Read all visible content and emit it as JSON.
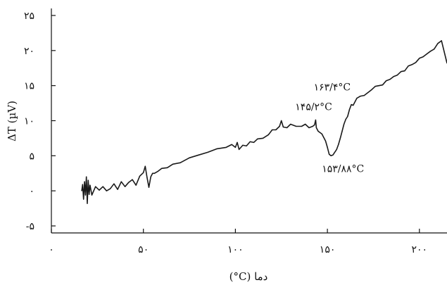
{
  "chart_data": {
    "type": "line",
    "xlabel": "(°C) دما",
    "ylabel": "ΔT (µV)",
    "xlim": [
      0,
      215
    ],
    "ylim": [
      -6,
      26
    ],
    "grid": false,
    "x_ticks": [
      {
        "value": 0,
        "label": "۰"
      },
      {
        "value": 50,
        "label": "۵۰"
      },
      {
        "value": 100,
        "label": "۱۰۰"
      },
      {
        "value": 150,
        "label": "۱۵۰"
      },
      {
        "value": 200,
        "label": "۲۰۰"
      }
    ],
    "y_ticks": [
      {
        "value": -5,
        "label": "-۵"
      },
      {
        "value": 0,
        "label": "۰"
      },
      {
        "value": 5,
        "label": "۵"
      },
      {
        "value": 10,
        "label": "۱۰"
      },
      {
        "value": 15,
        "label": "۱۵"
      },
      {
        "value": 20,
        "label": "۲۰"
      },
      {
        "value": 25,
        "label": "۲۵"
      }
    ],
    "series": [
      {
        "color": "#1a1a1a",
        "x": [
          16.5,
          17,
          17.5,
          18,
          18.5,
          19,
          19.5,
          20,
          20.5,
          21,
          22,
          24,
          26,
          28,
          30,
          32,
          34,
          36,
          38,
          40,
          42,
          44,
          46,
          48,
          50,
          51,
          52,
          53,
          54,
          55,
          56,
          58,
          60,
          63,
          66,
          70,
          75,
          80,
          85,
          90,
          95,
          98,
          100,
          101,
          102,
          104,
          106,
          108,
          110,
          112,
          115,
          118,
          120,
          122,
          124,
          125,
          126,
          128,
          130,
          133,
          136,
          138,
          140,
          142,
          143,
          143.6,
          144,
          145,
          146,
          147,
          148,
          149,
          150,
          151,
          152,
          153,
          154,
          155,
          156,
          157,
          158,
          159,
          160,
          161,
          162,
          163,
          164,
          166,
          168,
          170,
          172,
          174,
          176,
          178,
          180,
          182,
          184,
          186,
          188,
          190,
          192,
          194,
          196,
          198,
          200,
          202,
          204,
          206,
          208,
          210,
          212,
          215
        ],
        "y": [
          0,
          0.9,
          -1.2,
          1.3,
          -0.6,
          2.0,
          -1.8,
          1.5,
          -0.5,
          0.8,
          -0.6,
          0.6,
          0.1,
          0.6,
          0.0,
          0.3,
          1.0,
          0.2,
          1.3,
          0.6,
          1.2,
          1.6,
          0.8,
          2.1,
          2.6,
          3.5,
          1.9,
          0.5,
          2.0,
          2.5,
          2.5,
          2.8,
          3.2,
          3.3,
          3.8,
          4.0,
          4.7,
          5.1,
          5.5,
          6.0,
          6.2,
          6.6,
          6.2,
          6.9,
          5.9,
          6.5,
          6.4,
          7.0,
          6.9,
          7.4,
          7.5,
          8.0,
          8.7,
          8.7,
          9.2,
          10.0,
          9.1,
          9.0,
          9.5,
          9.2,
          9.2,
          9.5,
          9.0,
          9.2,
          9.4,
          10.1,
          9.0,
          8.5,
          8.3,
          8.1,
          7.6,
          7.1,
          6.2,
          5.2,
          5.0,
          5.1,
          5.5,
          5.9,
          6.6,
          7.5,
          8.5,
          9.5,
          10.2,
          10.6,
          11.6,
          12.3,
          12.2,
          13.2,
          13.5,
          13.6,
          14.0,
          14.4,
          14.9,
          15.0,
          15.1,
          15.7,
          15.9,
          16.3,
          16.5,
          17.0,
          17.1,
          17.8,
          18.0,
          18.3,
          18.9,
          19.1,
          19.5,
          19.9,
          20.2,
          21.0,
          21.4,
          18.2
        ]
      }
    ],
    "annotations": [
      {
        "text": "۱۴۵/۲°C",
        "x": 145.2,
        "y": 10.1
      },
      {
        "text": "۱۵۳/۸۸°C",
        "x": 153.88,
        "y": 5.0
      },
      {
        "text": "۱۶۳/۴°C",
        "x": 163.4,
        "y": 13.3
      }
    ]
  }
}
